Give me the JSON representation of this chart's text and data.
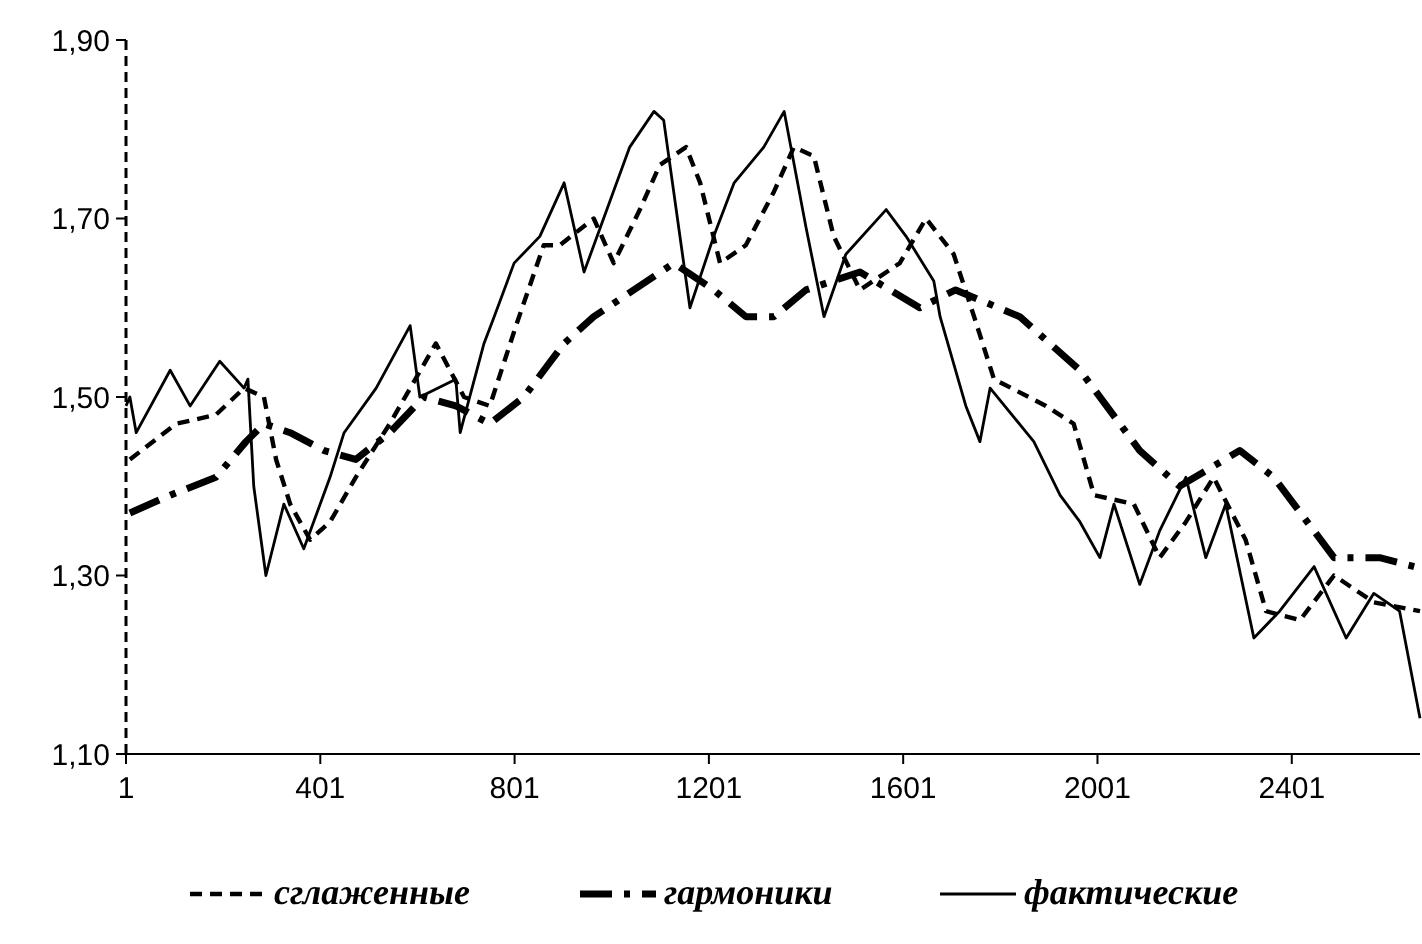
{
  "chart_data": {
    "type": "line",
    "xlim": [
      1,
      2665
    ],
    "xticks": [
      1,
      401,
      801,
      1201,
      1601,
      2001,
      2401
    ],
    "ylim": [
      1.1,
      1.9
    ],
    "yticks": [
      {
        "value": 1.1,
        "label": "1,10"
      },
      {
        "value": 1.3,
        "label": "1,30"
      },
      {
        "value": 1.5,
        "label": "1,50"
      },
      {
        "value": 1.7,
        "label": "1,70"
      },
      {
        "value": 1.9,
        "label": "1,90"
      }
    ],
    "grid": false,
    "legend": "bottom",
    "series": [
      {
        "name": "сглаженные",
        "color": "#000000",
        "line_style": "dashed",
        "x": [
          9,
          104,
          186,
          244,
          285,
          310,
          339,
          380,
          421,
          474,
          544,
          639,
          697,
          750,
          804,
          861,
          894,
          964,
          1005,
          1059,
          1100,
          1154,
          1183,
          1224,
          1277,
          1335,
          1376,
          1417,
          1458,
          1512,
          1594,
          1648,
          1705,
          1747,
          1788,
          1895,
          1952,
          1994,
          2076,
          2129,
          2183,
          2240,
          2306,
          2348,
          2418,
          2488,
          2570,
          2665
        ],
        "values": [
          1.43,
          1.47,
          1.48,
          1.51,
          1.5,
          1.43,
          1.38,
          1.34,
          1.36,
          1.41,
          1.47,
          1.56,
          1.5,
          1.49,
          1.58,
          1.67,
          1.67,
          1.7,
          1.65,
          1.71,
          1.76,
          1.78,
          1.74,
          1.65,
          1.67,
          1.73,
          1.78,
          1.77,
          1.68,
          1.62,
          1.65,
          1.7,
          1.66,
          1.59,
          1.52,
          1.49,
          1.47,
          1.39,
          1.38,
          1.32,
          1.36,
          1.41,
          1.34,
          1.26,
          1.25,
          1.3,
          1.27,
          1.26
        ]
      },
      {
        "name": "гармоники",
        "color": "#000000",
        "line_style": "dashdot",
        "x": [
          9,
          92,
          186,
          248,
          285,
          339,
          409,
          474,
          544,
          614,
          680,
          750,
          820,
          903,
          964,
          1129,
          1211,
          1277,
          1335,
          1401,
          1512,
          1635,
          1709,
          1841,
          1965,
          2088,
          2170,
          2294,
          2364,
          2488,
          2582,
          2653
        ],
        "values": [
          1.37,
          1.39,
          1.41,
          1.45,
          1.47,
          1.46,
          1.44,
          1.43,
          1.46,
          1.5,
          1.49,
          1.47,
          1.5,
          1.56,
          1.59,
          1.65,
          1.62,
          1.59,
          1.59,
          1.62,
          1.64,
          1.6,
          1.62,
          1.59,
          1.53,
          1.44,
          1.4,
          1.44,
          1.41,
          1.32,
          1.32,
          1.31
        ]
      },
      {
        "name": "фактические",
        "color": "#000000",
        "line_style": "solid",
        "x": [
          1,
          9,
          22,
          92,
          133,
          194,
          244,
          252,
          264,
          289,
          326,
          367,
          421,
          450,
          516,
          586,
          606,
          680,
          689,
          738,
          759,
          800,
          853,
          903,
          944,
          1038,
          1088,
          1108,
          1162,
          1211,
          1253,
          1314,
          1356,
          1401,
          1438,
          1483,
          1566,
          1607,
          1664,
          1677,
          1730,
          1759,
          1780,
          1870,
          1924,
          1965,
          2006,
          2035,
          2088,
          2129,
          2183,
          2224,
          2265,
          2323,
          2376,
          2447,
          2513,
          2570,
          2623,
          2665
        ],
        "values": [
          1.49,
          1.5,
          1.46,
          1.53,
          1.49,
          1.54,
          1.51,
          1.52,
          1.4,
          1.3,
          1.38,
          1.33,
          1.41,
          1.46,
          1.51,
          1.58,
          1.5,
          1.52,
          1.46,
          1.56,
          1.59,
          1.65,
          1.68,
          1.74,
          1.64,
          1.78,
          1.82,
          1.81,
          1.6,
          1.68,
          1.74,
          1.78,
          1.82,
          1.69,
          1.59,
          1.66,
          1.71,
          1.68,
          1.63,
          1.59,
          1.49,
          1.45,
          1.51,
          1.45,
          1.39,
          1.36,
          1.32,
          1.38,
          1.29,
          1.35,
          1.41,
          1.32,
          1.38,
          1.23,
          1.26,
          1.31,
          1.23,
          1.28,
          1.26,
          1.14
        ]
      }
    ]
  }
}
